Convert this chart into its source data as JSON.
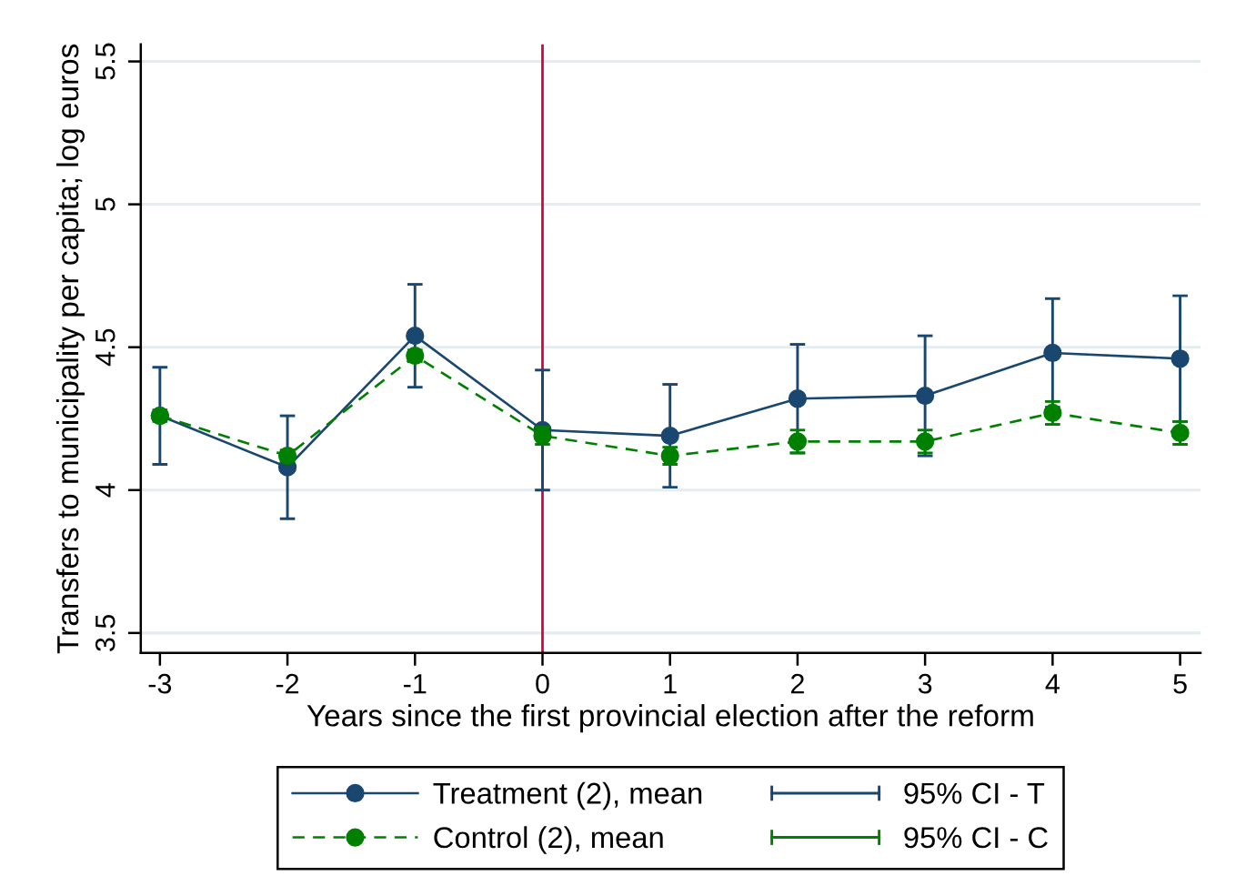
{
  "chart_data": {
    "type": "line",
    "x": [
      -3,
      -2,
      -1,
      0,
      1,
      2,
      3,
      4,
      5
    ],
    "xlabel": "Years since the first provincial election after the reform",
    "ylabel": "Transfers to municipality per capita; log euros",
    "xlim": [
      -3.15,
      5.16
    ],
    "xticks": [
      -3,
      -2,
      -1,
      0,
      1,
      2,
      3,
      4,
      5
    ],
    "ylim": [
      3.43,
      5.56
    ],
    "yticks": [
      3.5,
      4,
      4.5,
      5,
      5.5
    ],
    "grid": "y",
    "legend": "bottom",
    "ref_lines": [
      {
        "axis": "x",
        "value": 0,
        "color": "#d6033f"
      }
    ],
    "series": [
      {
        "name": "Treatment (2), mean",
        "color": "#1a476f",
        "marker": "circle",
        "line_style": "solid",
        "values": [
          4.26,
          4.08,
          4.54,
          4.21,
          4.19,
          4.32,
          4.33,
          4.48,
          4.46
        ],
        "errors": [
          0.17,
          0.18,
          0.18,
          0.21,
          0.18,
          0.19,
          0.21,
          0.19,
          0.22
        ]
      },
      {
        "name": "Control (2), mean",
        "color": "#008000",
        "marker": "circle",
        "line_style": "dashed",
        "values": [
          4.26,
          4.12,
          4.47,
          4.19,
          4.12,
          4.17,
          4.17,
          4.27,
          4.2
        ],
        "errors": [
          0.02,
          0.02,
          0.02,
          0.03,
          0.03,
          0.04,
          0.04,
          0.04,
          0.04
        ]
      },
      {
        "name": "95% CI - T",
        "type": "scatter",
        "color": "#1a476f",
        "values": [
          null,
          null,
          null,
          null,
          null,
          null,
          null,
          null,
          null
        ]
      },
      {
        "name": "95% CI - C",
        "type": "scatter",
        "color": "#008000",
        "values": [
          null,
          null,
          null,
          null,
          null,
          null,
          null,
          null,
          null
        ]
      }
    ]
  }
}
